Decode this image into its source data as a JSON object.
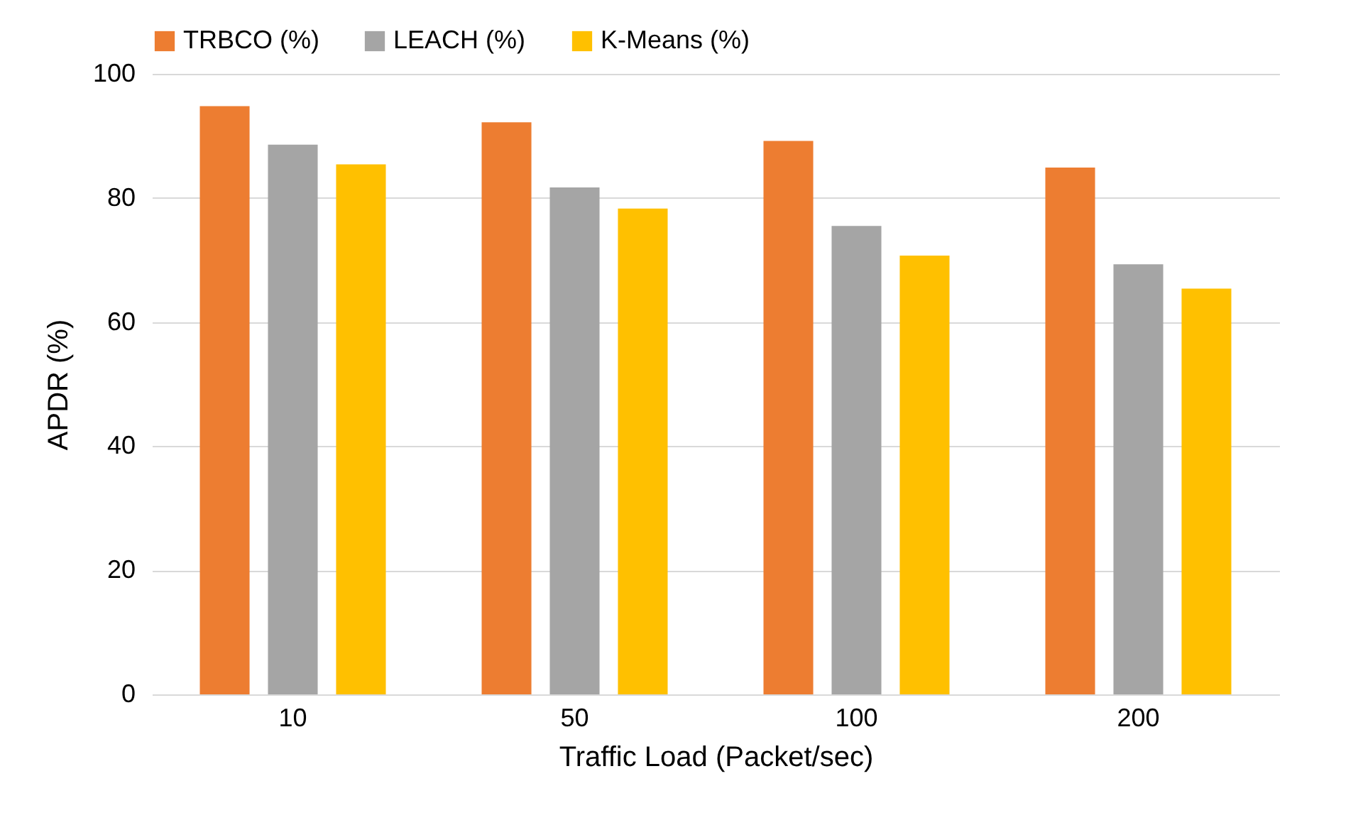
{
  "chart_data": {
    "type": "bar",
    "xlabel": "Traffic Load (Packet/sec)",
    "ylabel": "APDR (%)",
    "categories": [
      "10",
      "50",
      "100",
      "200"
    ],
    "series": [
      {
        "name": "TRBCO (%)",
        "color": "#ed7d31",
        "values": [
          94.8,
          92.2,
          89.2,
          84.9
        ]
      },
      {
        "name": "LEACH (%)",
        "color": "#a5a5a5",
        "values": [
          88.6,
          81.7,
          75.5,
          69.3
        ]
      },
      {
        "name": "K-Means (%)",
        "color": "#ffc000",
        "values": [
          85.4,
          78.3,
          70.7,
          65.4
        ]
      }
    ],
    "ylim": [
      0,
      100
    ],
    "yticks": [
      0,
      20,
      40,
      60,
      80,
      100
    ],
    "grid": "y",
    "legend": "top"
  }
}
